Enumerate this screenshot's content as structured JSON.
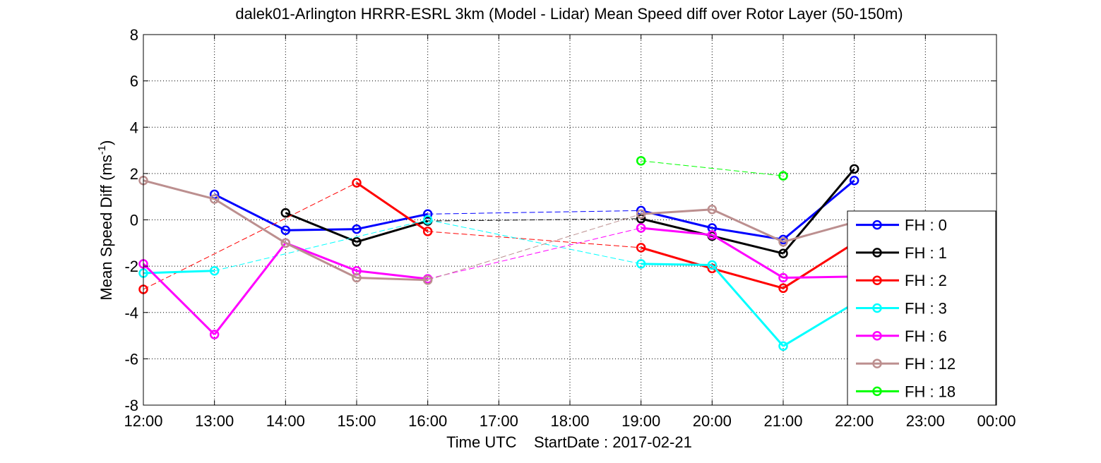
{
  "chart_data": {
    "type": "line",
    "title": "dalek01-Arlington HRRR-ESRL 3km (Model - Lidar) Mean Speed diff over Rotor Layer (50-150m)",
    "ylabel_main": "Mean Speed Diff (ms",
    "ylabel_sup": "-1",
    "ylabel_end": ")",
    "xlabel": "Time UTC    StartDate : 2017-02-21",
    "x_ticks": [
      "12:00",
      "13:00",
      "14:00",
      "15:00",
      "16:00",
      "17:00",
      "18:00",
      "19:00",
      "20:00",
      "21:00",
      "22:00",
      "23:00",
      "00:00"
    ],
    "y_ticks": [
      "-8",
      "-6",
      "-4",
      "-2",
      "0",
      "2",
      "4",
      "6",
      "8"
    ],
    "xlim": [
      12,
      24
    ],
    "ylim": [
      -8,
      8
    ],
    "grid": true,
    "legend_position": "bottom-right",
    "series": [
      {
        "name": "FH : 0",
        "color": "#0000ff",
        "x": [
          13,
          14,
          15,
          16,
          19,
          20,
          21,
          22
        ],
        "y": [
          1.1,
          -0.45,
          -0.4,
          0.25,
          0.4,
          -0.35,
          -0.85,
          1.7
        ]
      },
      {
        "name": "FH : 1",
        "color": "#000000",
        "x": [
          14,
          15,
          16,
          19,
          20,
          21,
          22
        ],
        "y": [
          0.3,
          -0.95,
          -0.05,
          0.05,
          -0.7,
          -1.45,
          2.2
        ]
      },
      {
        "name": "FH : 2",
        "color": "#ff0000",
        "x": [
          12,
          15,
          16,
          19,
          20,
          21,
          22
        ],
        "y": [
          -3.0,
          1.6,
          -0.5,
          -1.2,
          -2.1,
          -2.95,
          -1.0
        ]
      },
      {
        "name": "FH : 3",
        "color": "#00ffff",
        "x": [
          12,
          13,
          16,
          19,
          20,
          21,
          22
        ],
        "y": [
          -2.3,
          -2.2,
          0.0,
          -1.9,
          -1.95,
          -5.45,
          -3.6
        ]
      },
      {
        "name": "FH : 6",
        "color": "#ff00ff",
        "x": [
          12,
          13,
          14,
          15,
          16,
          19,
          20,
          21,
          22
        ],
        "y": [
          -1.9,
          -4.95,
          -1.0,
          -2.2,
          -2.55,
          -0.35,
          -0.65,
          -2.5,
          -2.45
        ]
      },
      {
        "name": "FH : 12",
        "color": "#bc8f8f",
        "x": [
          12,
          13,
          14,
          15,
          16,
          19,
          20,
          21,
          22
        ],
        "y": [
          1.7,
          0.9,
          -1.0,
          -2.5,
          -2.6,
          0.25,
          0.45,
          -0.95,
          -0.1
        ]
      },
      {
        "name": "FH : 18",
        "color": "#00ff00",
        "x": [
          19,
          21
        ],
        "y": [
          2.55,
          1.9
        ]
      }
    ]
  }
}
